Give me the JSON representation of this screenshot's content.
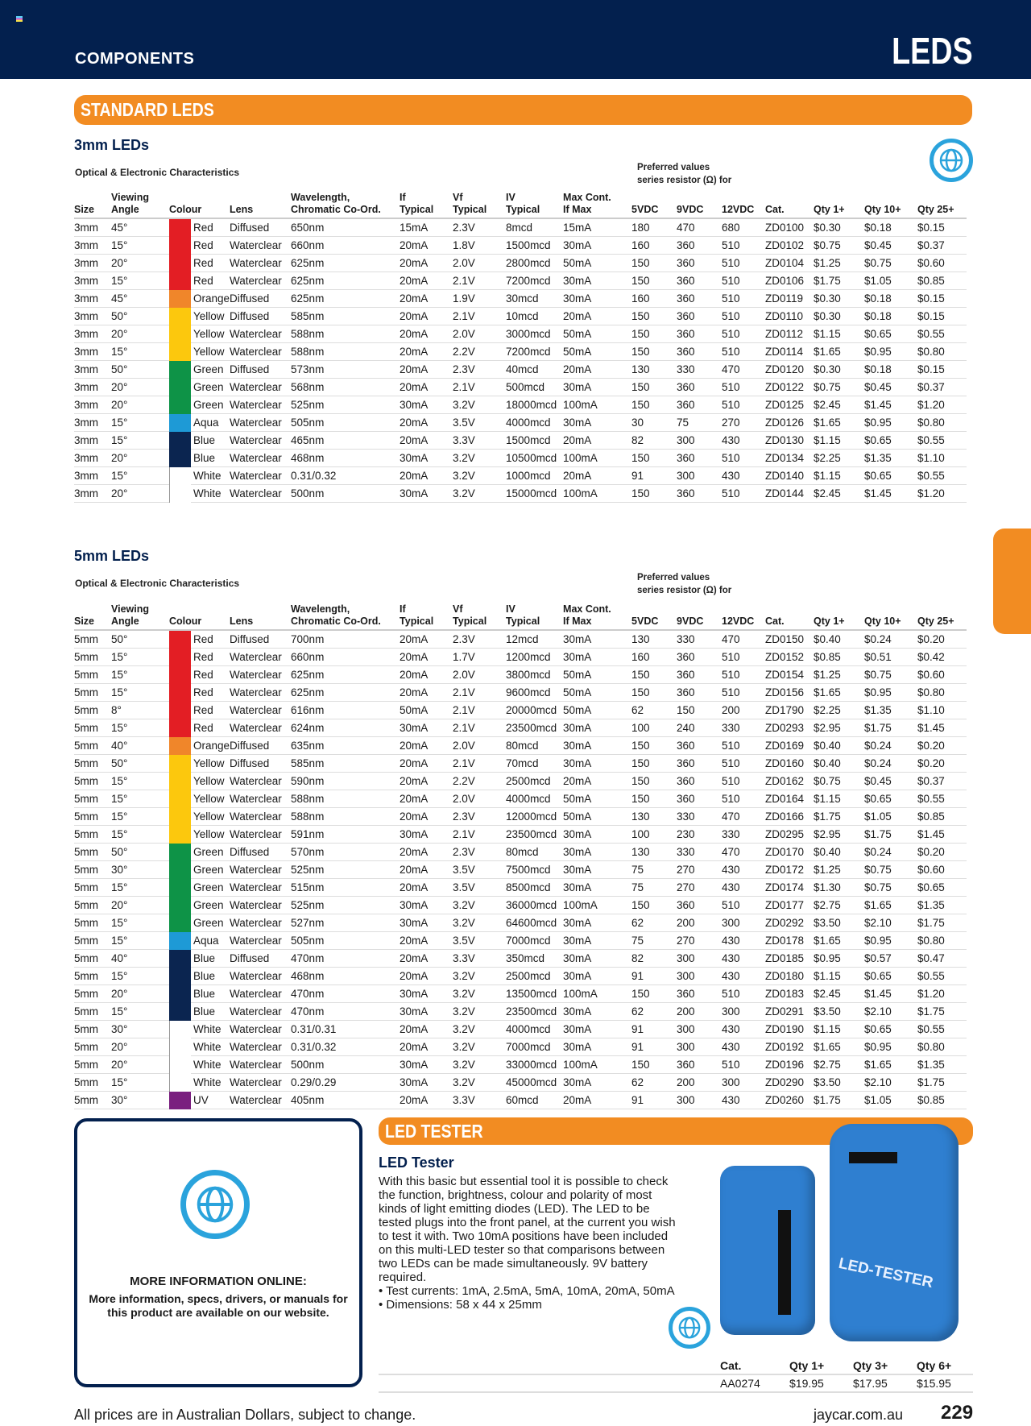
{
  "header": {
    "section": "COMPONENTS",
    "title": "LEDS"
  },
  "standard_bar": "STANDARD LEDS",
  "colors": {
    "Red": "#e31e24",
    "Orange": "#f0862a",
    "Yellow": "#fcc80d",
    "Green": "#0e9347",
    "Aqua": "#1e9ad6",
    "Blue": "#0b2550",
    "White": "#ffffff",
    "UV": "#7a1f7f",
    "navy": "#03204e",
    "orange_accent": "#f28c22"
  },
  "columns": [
    [
      "Size",
      ""
    ],
    [
      "Angle",
      "Viewing"
    ],
    [
      "Colour",
      ""
    ],
    [
      "Lens",
      ""
    ],
    [
      "Chromatic Co-Ord.",
      "Wavelength,"
    ],
    [
      "Typical",
      "If"
    ],
    [
      "Typical",
      "Vf"
    ],
    [
      "Typical",
      "IV"
    ],
    [
      "If Max",
      "Max  Cont."
    ],
    [
      "5VDC",
      ""
    ],
    [
      "9VDC",
      ""
    ],
    [
      "12VDC",
      ""
    ],
    [
      "Cat.",
      ""
    ],
    [
      "Qty 1+",
      ""
    ],
    [
      "Qty 10+",
      ""
    ],
    [
      "Qty 25+",
      ""
    ]
  ],
  "section_3mm": {
    "title": "3mm LEDs",
    "subtitle": "Optical & Electronic Characteristics",
    "preferred": "Preferred values",
    "preferred2": "series resistor (Ω) for",
    "rows": [
      [
        "3mm",
        "45°",
        "Red",
        "Diffused",
        "650nm",
        "15mA",
        "2.3V",
        "8mcd",
        "15mA",
        "180",
        "470",
        "680",
        "ZD0100",
        "$0.30",
        "$0.18",
        "$0.15"
      ],
      [
        "3mm",
        "15°",
        "Red",
        "Waterclear",
        "660nm",
        "20mA",
        "1.8V",
        "1500mcd",
        "30mA",
        "160",
        "360",
        "510",
        "ZD0102",
        "$0.75",
        "$0.45",
        "$0.37"
      ],
      [
        "3mm",
        "20°",
        "Red",
        "Waterclear",
        "625nm",
        "20mA",
        "2.0V",
        "2800mcd",
        "50mA",
        "150",
        "360",
        "510",
        "ZD0104",
        "$1.25",
        "$0.75",
        "$0.60"
      ],
      [
        "3mm",
        "15°",
        "Red",
        "Waterclear",
        "625nm",
        "20mA",
        "2.1V",
        "7200mcd",
        "30mA",
        "150",
        "360",
        "510",
        "ZD0106",
        "$1.75",
        "$1.05",
        "$0.85"
      ],
      [
        "3mm",
        "45°",
        "Orange",
        "Diffused",
        "625nm",
        "20mA",
        "1.9V",
        "30mcd",
        "30mA",
        "160",
        "360",
        "510",
        "ZD0119",
        "$0.30",
        "$0.18",
        "$0.15"
      ],
      [
        "3mm",
        "50°",
        "Yellow",
        "Diffused",
        "585nm",
        "20mA",
        "2.1V",
        "10mcd",
        "20mA",
        "150",
        "360",
        "510",
        "ZD0110",
        "$0.30",
        "$0.18",
        "$0.15"
      ],
      [
        "3mm",
        "20°",
        "Yellow",
        "Waterclear",
        "588nm",
        "20mA",
        "2.0V",
        "3000mcd",
        "50mA",
        "150",
        "360",
        "510",
        "ZD0112",
        "$1.15",
        "$0.65",
        "$0.55"
      ],
      [
        "3mm",
        "15°",
        "Yellow",
        "Waterclear",
        "588nm",
        "20mA",
        "2.2V",
        "7200mcd",
        "50mA",
        "150",
        "360",
        "510",
        "ZD0114",
        "$1.65",
        "$0.95",
        "$0.80"
      ],
      [
        "3mm",
        "50°",
        "Green",
        "Diffused",
        "573nm",
        "20mA",
        "2.3V",
        "40mcd",
        "20mA",
        "130",
        "330",
        "470",
        "ZD0120",
        "$0.30",
        "$0.18",
        "$0.15"
      ],
      [
        "3mm",
        "20°",
        "Green",
        "Waterclear",
        "568nm",
        "20mA",
        "2.1V",
        "500mcd",
        "30mA",
        "150",
        "360",
        "510",
        "ZD0122",
        "$0.75",
        "$0.45",
        "$0.37"
      ],
      [
        "3mm",
        "20°",
        "Green",
        "Waterclear",
        "525nm",
        "30mA",
        "3.2V",
        "18000mcd",
        "100mA",
        "150",
        "360",
        "510",
        "ZD0125",
        "$2.45",
        "$1.45",
        "$1.20"
      ],
      [
        "3mm",
        "15°",
        "Aqua",
        "Waterclear",
        "505nm",
        "20mA",
        "3.5V",
        "4000mcd",
        "30mA",
        "30",
        "75",
        "270",
        "ZD0126",
        "$1.65",
        "$0.95",
        "$0.80"
      ],
      [
        "3mm",
        "15°",
        "Blue",
        "Waterclear",
        "465nm",
        "20mA",
        "3.3V",
        "1500mcd",
        "20mA",
        "82",
        "300",
        "430",
        "ZD0130",
        "$1.15",
        "$0.65",
        "$0.55"
      ],
      [
        "3mm",
        "20°",
        "Blue",
        "Waterclear",
        "468nm",
        "30mA",
        "3.2V",
        "10500mcd",
        "100mA",
        "150",
        "360",
        "510",
        "ZD0134",
        "$2.25",
        "$1.35",
        "$1.10"
      ],
      [
        "3mm",
        "15°",
        "White",
        "Waterclear",
        "0.31/0.32",
        "20mA",
        "3.2V",
        "1000mcd",
        "20mA",
        "91",
        "300",
        "430",
        "ZD0140",
        "$1.15",
        "$0.65",
        "$0.55"
      ],
      [
        "3mm",
        "20°",
        "White",
        "Waterclear",
        "500nm",
        "30mA",
        "3.2V",
        "15000mcd",
        "100mA",
        "150",
        "360",
        "510",
        "ZD0144",
        "$2.45",
        "$1.45",
        "$1.20"
      ]
    ]
  },
  "section_5mm": {
    "title": "5mm LEDs",
    "subtitle": "Optical & Electronic Characteristics",
    "preferred": "Preferred values",
    "preferred2": "series resistor (Ω) for",
    "rows": [
      [
        "5mm",
        "50°",
        "Red",
        "Diffused",
        "700nm",
        "20mA",
        "2.3V",
        "12mcd",
        "30mA",
        "130",
        "330",
        "470",
        "ZD0150",
        "$0.40",
        "$0.24",
        "$0.20"
      ],
      [
        "5mm",
        "15°",
        "Red",
        "Waterclear",
        "660nm",
        "20mA",
        "1.7V",
        "1200mcd",
        "30mA",
        "160",
        "360",
        "510",
        "ZD0152",
        "$0.85",
        "$0.51",
        "$0.42"
      ],
      [
        "5mm",
        "15°",
        "Red",
        "Waterclear",
        "625nm",
        "20mA",
        "2.0V",
        "3800mcd",
        "50mA",
        "150",
        "360",
        "510",
        "ZD0154",
        "$1.25",
        "$0.75",
        "$0.60"
      ],
      [
        "5mm",
        "15°",
        "Red",
        "Waterclear",
        "625nm",
        "20mA",
        "2.1V",
        "9600mcd",
        "50mA",
        "150",
        "360",
        "510",
        "ZD0156",
        "$1.65",
        "$0.95",
        "$0.80"
      ],
      [
        "5mm",
        "8°",
        "Red",
        "Waterclear",
        "616nm",
        "50mA",
        "2.1V",
        "20000mcd",
        "50mA",
        "62",
        "150",
        "200",
        "ZD1790",
        "$2.25",
        "$1.35",
        "$1.10"
      ],
      [
        "5mm",
        "15°",
        "Red",
        "Waterclear",
        "624nm",
        "30mA",
        "2.1V",
        "23500mcd",
        "30mA",
        "100",
        "240",
        "330",
        "ZD0293",
        "$2.95",
        "$1.75",
        "$1.45"
      ],
      [
        "5mm",
        "40°",
        "Orange",
        "Diffused",
        "635nm",
        "20mA",
        "2.0V",
        "80mcd",
        "30mA",
        "150",
        "360",
        "510",
        "ZD0169",
        "$0.40",
        "$0.24",
        "$0.20"
      ],
      [
        "5mm",
        "50°",
        "Yellow",
        "Diffused",
        "585nm",
        "20mA",
        "2.1V",
        "70mcd",
        "30mA",
        "150",
        "360",
        "510",
        "ZD0160",
        "$0.40",
        "$0.24",
        "$0.20"
      ],
      [
        "5mm",
        "15°",
        "Yellow",
        "Waterclear",
        "590nm",
        "20mA",
        "2.2V",
        "2500mcd",
        "20mA",
        "150",
        "360",
        "510",
        "ZD0162",
        "$0.75",
        "$0.45",
        "$0.37"
      ],
      [
        "5mm",
        "15°",
        "Yellow",
        "Waterclear",
        "588nm",
        "20mA",
        "2.0V",
        "4000mcd",
        "50mA",
        "150",
        "360",
        "510",
        "ZD0164",
        "$1.15",
        "$0.65",
        "$0.55"
      ],
      [
        "5mm",
        "15°",
        "Yellow",
        "Waterclear",
        "588nm",
        "20mA",
        "2.3V",
        "12000mcd",
        "50mA",
        "130",
        "330",
        "470",
        "ZD0166",
        "$1.75",
        "$1.05",
        "$0.85"
      ],
      [
        "5mm",
        "15°",
        "Yellow",
        "Waterclear",
        "591nm",
        "30mA",
        "2.1V",
        "23500mcd",
        "30mA",
        "100",
        "230",
        "330",
        "ZD0295",
        "$2.95",
        "$1.75",
        "$1.45"
      ],
      [
        "5mm",
        "50°",
        "Green",
        "Diffused",
        "570nm",
        "20mA",
        "2.3V",
        "80mcd",
        "30mA",
        "130",
        "330",
        "470",
        "ZD0170",
        "$0.40",
        "$0.24",
        "$0.20"
      ],
      [
        "5mm",
        "30°",
        "Green",
        "Waterclear",
        "525nm",
        "20mA",
        "3.5V",
        "7500mcd",
        "30mA",
        "75",
        "270",
        "430",
        "ZD0172",
        "$1.25",
        "$0.75",
        "$0.60"
      ],
      [
        "5mm",
        "15°",
        "Green",
        "Waterclear",
        "515nm",
        "20mA",
        "3.5V",
        "8500mcd",
        "30mA",
        "75",
        "270",
        "430",
        "ZD0174",
        "$1.30",
        "$0.75",
        "$0.65"
      ],
      [
        "5mm",
        "20°",
        "Green",
        "Waterclear",
        "525nm",
        "30mA",
        "3.2V",
        "36000mcd",
        "100mA",
        "150",
        "360",
        "510",
        "ZD0177",
        "$2.75",
        "$1.65",
        "$1.35"
      ],
      [
        "5mm",
        "15°",
        "Green",
        "Waterclear",
        "527nm",
        "30mA",
        "3.2V",
        "64600mcd",
        "30mA",
        "62",
        "200",
        "300",
        "ZD0292",
        "$3.50",
        "$2.10",
        "$1.75"
      ],
      [
        "5mm",
        "15°",
        "Aqua",
        "Waterclear",
        "505nm",
        "20mA",
        "3.5V",
        "7000mcd",
        "30mA",
        "75",
        "270",
        "430",
        "ZD0178",
        "$1.65",
        "$0.95",
        "$0.80"
      ],
      [
        "5mm",
        "40°",
        "Blue",
        "Diffused",
        "470nm",
        "20mA",
        "3.3V",
        "350mcd",
        "30mA",
        "82",
        "300",
        "430",
        "ZD0185",
        "$0.95",
        "$0.57",
        "$0.47"
      ],
      [
        "5mm",
        "15°",
        "Blue",
        "Waterclear",
        "468nm",
        "20mA",
        "3.2V",
        "2500mcd",
        "30mA",
        "91",
        "300",
        "430",
        "ZD0180",
        "$1.15",
        "$0.65",
        "$0.55"
      ],
      [
        "5mm",
        "20°",
        "Blue",
        "Waterclear",
        "470nm",
        "30mA",
        "3.2V",
        "13500mcd",
        "100mA",
        "150",
        "360",
        "510",
        "ZD0183",
        "$2.45",
        "$1.45",
        "$1.20"
      ],
      [
        "5mm",
        "15°",
        "Blue",
        "Waterclear",
        "470nm",
        "30mA",
        "3.2V",
        "23500mcd",
        "30mA",
        "62",
        "200",
        "300",
        "ZD0291",
        "$3.50",
        "$2.10",
        "$1.75"
      ],
      [
        "5mm",
        "30°",
        "White",
        "Waterclear",
        "0.31/0.31",
        "20mA",
        "3.2V",
        "4000mcd",
        "30mA",
        "91",
        "300",
        "430",
        "ZD0190",
        "$1.15",
        "$0.65",
        "$0.55"
      ],
      [
        "5mm",
        "20°",
        "White",
        "Waterclear",
        "0.31/0.32",
        "20mA",
        "3.2V",
        "7000mcd",
        "30mA",
        "91",
        "300",
        "430",
        "ZD0192",
        "$1.65",
        "$0.95",
        "$0.80"
      ],
      [
        "5mm",
        "20°",
        "White",
        "Waterclear",
        "500nm",
        "30mA",
        "3.2V",
        "33000mcd",
        "100mA",
        "150",
        "360",
        "510",
        "ZD0196",
        "$2.75",
        "$1.65",
        "$1.35"
      ],
      [
        "5mm",
        "15°",
        "White",
        "Waterclear",
        "0.29/0.29",
        "30mA",
        "3.2V",
        "45000mcd",
        "30mA",
        "62",
        "200",
        "300",
        "ZD0290",
        "$3.50",
        "$2.10",
        "$1.75"
      ],
      [
        "5mm",
        "30°",
        "UV",
        "Waterclear",
        "405nm",
        "20mA",
        "3.3V",
        "60mcd",
        "20mA",
        "91",
        "300",
        "430",
        "ZD0260",
        "$1.75",
        "$1.05",
        "$0.85"
      ]
    ]
  },
  "info_box": {
    "icon": "globe-icon",
    "title": "MORE INFORMATION ONLINE:",
    "text": "More information, specs, drivers, or manuals for this product are available on our website."
  },
  "tester": {
    "bar": "LED TESTER",
    "title": "LED Tester",
    "description": "With this basic but essential tool it is possible to check the function, brightness, colour and polarity of most kinds of light emitting diodes (LED). The LED to be tested plugs into the front panel, at the current you wish to test it with. Two 10mA positions have been included on this multi-LED tester so that comparisons between two LEDs can be made simultaneously. 9V battery required.",
    "bullets": [
      "• Test currents: 1mA, 2.5mA, 5mA, 10mA, 20mA, 50mA",
      "• Dimensions: 58 x 44 x 25mm"
    ],
    "device_label": "LED-TESTER",
    "price_headers": [
      "Cat.",
      "Qty 1+",
      "Qty 3+",
      "Qty 6+"
    ],
    "price_row": [
      "AA0274",
      "$19.95",
      "$17.95",
      "$15.95"
    ]
  },
  "footer": {
    "disclaimer": "All prices are in Australian Dollars, subject to change.",
    "website": "jaycar.com.au",
    "page": "229"
  }
}
